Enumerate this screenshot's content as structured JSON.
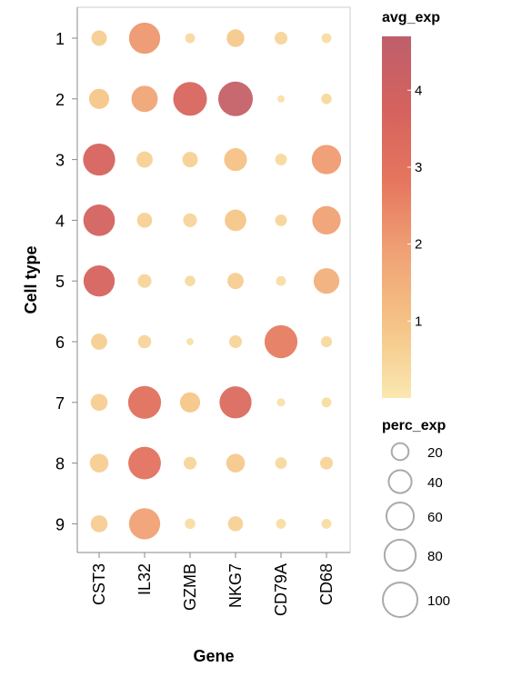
{
  "chart_data": {
    "type": "dot-plot",
    "xlabel": "Gene",
    "ylabel": "Cell type",
    "genes": [
      "CST3",
      "IL32",
      "GZMB",
      "NKG7",
      "CD79A",
      "CD68"
    ],
    "cell_types": [
      "1",
      "2",
      "3",
      "4",
      "5",
      "6",
      "7",
      "8",
      "9"
    ],
    "avg_exp": [
      [
        0.7,
        2.1,
        0.4,
        0.8,
        0.5,
        0.3
      ],
      [
        0.9,
        1.8,
        3.6,
        4.4,
        0.2,
        0.4
      ],
      [
        3.7,
        0.6,
        0.6,
        1.0,
        0.4,
        2.0
      ],
      [
        3.8,
        0.6,
        0.5,
        0.9,
        0.5,
        1.9
      ],
      [
        3.7,
        0.5,
        0.4,
        0.7,
        0.3,
        1.5
      ],
      [
        0.7,
        0.5,
        0.2,
        0.5,
        2.7,
        0.4
      ],
      [
        0.7,
        3.1,
        0.9,
        3.4,
        0.2,
        0.3
      ],
      [
        0.7,
        3.0,
        0.5,
        0.8,
        0.4,
        0.5
      ],
      [
        0.7,
        1.9,
        0.3,
        0.6,
        0.3,
        0.3
      ]
    ],
    "perc_exp": [
      [
        16,
        80,
        5,
        22,
        10,
        5
      ],
      [
        30,
        55,
        95,
        100,
        2,
        6
      ],
      [
        85,
        18,
        16,
        40,
        8,
        70
      ],
      [
        82,
        15,
        12,
        35,
        8,
        65
      ],
      [
        80,
        12,
        6,
        18,
        5,
        52
      ],
      [
        18,
        11,
        2,
        10,
        90,
        7
      ],
      [
        20,
        90,
        30,
        85,
        3,
        5
      ],
      [
        25,
        88,
        10,
        25,
        8,
        10
      ],
      [
        20,
        80,
        6,
        15,
        5,
        5
      ]
    ],
    "color_legend": {
      "title": "avg_exp",
      "min": 0,
      "max": 4.7,
      "ticks": [
        1,
        2,
        3,
        4
      ],
      "colors": [
        "#fae8b0",
        "#f5c486",
        "#f0a275",
        "#e5765e",
        "#d5625e",
        "#be5f6b"
      ]
    },
    "size_legend": {
      "title": "perc_exp",
      "values": [
        20,
        40,
        60,
        80,
        100
      ]
    },
    "grid": false
  }
}
